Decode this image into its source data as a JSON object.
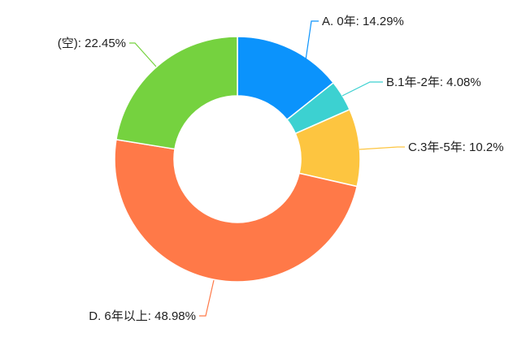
{
  "chart_data": {
    "type": "pie",
    "donut": true,
    "title": "",
    "legend": "none",
    "slices": [
      {
        "label": "A. 0年: 14.29%",
        "category": "A. 0年",
        "value": 14.29,
        "color": "#0b93fc"
      },
      {
        "label": "B.1年-2年: 4.08%",
        "category": "B.1年-2年",
        "value": 4.08,
        "color": "#3cd1d1"
      },
      {
        "label": "C.3年-5年: 10.2%",
        "category": "C.3年-5年",
        "value": 10.2,
        "color": "#fdc540"
      },
      {
        "label": "D. 6年以上: 48.98%",
        "category": "D. 6年以上",
        "value": 48.98,
        "color": "#ff7948"
      },
      {
        "label": "(空): 22.45%",
        "category": "(空)",
        "value": 22.45,
        "color": "#75d23f"
      }
    ]
  }
}
